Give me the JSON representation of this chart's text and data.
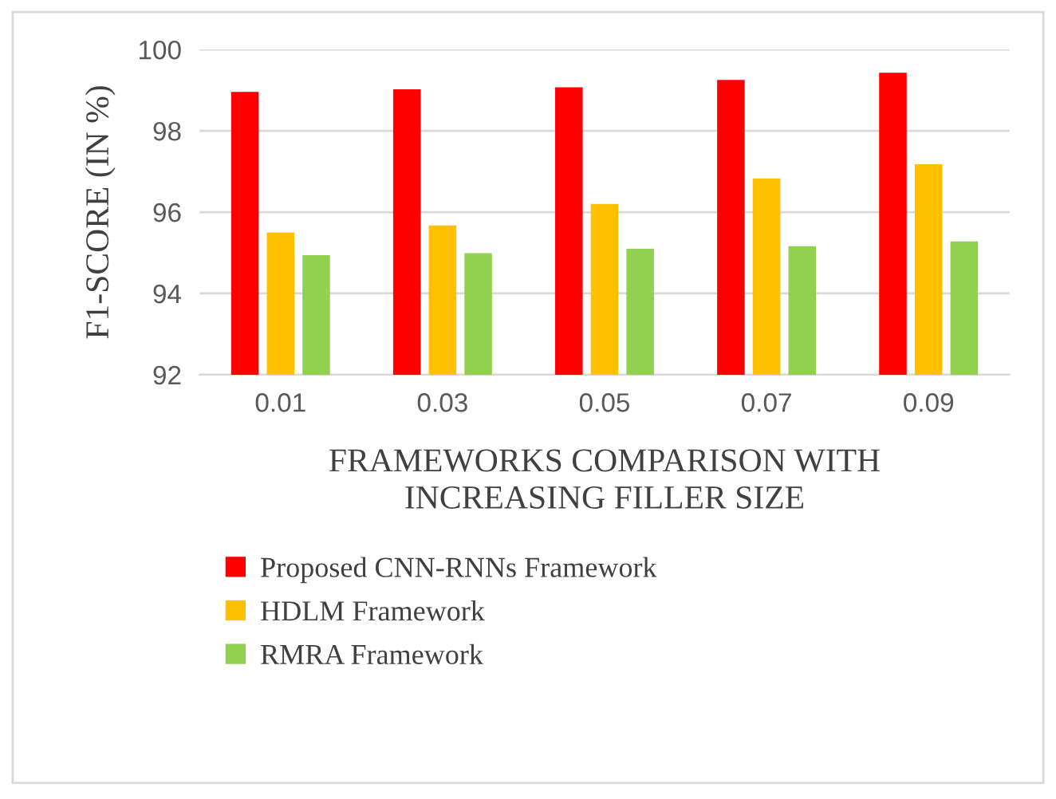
{
  "chart_data": {
    "type": "bar",
    "xlabel": "FRAMEWORKS COMPARISON WITH\nINCREASING FILLER SIZE",
    "ylabel": "F1-SCORE (IN %)",
    "categories": [
      "0.01",
      "0.03",
      "0.05",
      "0.07",
      "0.09"
    ],
    "series": [
      {
        "name": "Proposed CNN-RNNs Framework",
        "color": "#ff0000",
        "values": [
          98.96,
          99.02,
          99.07,
          99.25,
          99.43
        ]
      },
      {
        "name": "HDLM Framework",
        "color": "#ffc000",
        "values": [
          95.5,
          95.67,
          96.2,
          96.83,
          97.18
        ]
      },
      {
        "name": "RMRA Framework",
        "color": "#92d050",
        "values": [
          94.94,
          94.99,
          95.1,
          95.16,
          95.28
        ]
      }
    ],
    "ylim": [
      92,
      100
    ],
    "yticks": [
      92,
      94,
      96,
      98,
      100
    ],
    "grid": "y",
    "legend": "bottom"
  }
}
